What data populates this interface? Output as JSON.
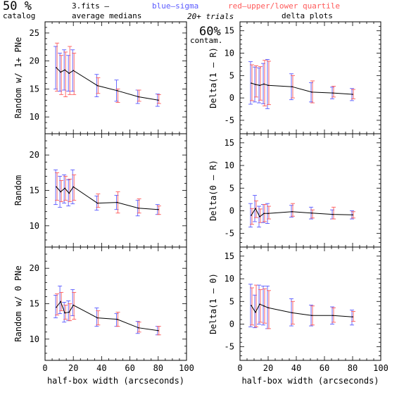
{
  "header": {
    "percent": "50 %",
    "catalog": "catalog",
    "fits_label": "3.fits  —",
    "average_medians": "average medians",
    "blue_sigma": "blue—sigma",
    "red_quartile": "red—upper/lower quartile",
    "trials": "20+ trials",
    "delta_plots": "delta plots",
    "contam_pct": "60%",
    "contam": "contam."
  },
  "colors": {
    "sigma": "#5a5aff",
    "quartile": "#ff5a5a",
    "line": "#000000"
  },
  "chart_data": [
    {
      "type": "line",
      "panel": "left-top",
      "xlabel": "",
      "ylabel": "Random w/ 1+ PNe",
      "xlim": [
        0,
        100
      ],
      "ylim": [
        7,
        27
      ],
      "xticks": [
        "0",
        "20",
        "40",
        "60",
        "80",
        "100"
      ],
      "yticks": [
        10,
        15,
        20,
        25
      ],
      "x": [
        8,
        11,
        14,
        17,
        20,
        37,
        51,
        66,
        80
      ],
      "y": [
        18.8,
        18.0,
        18.4,
        17.8,
        18.3,
        15.6,
        14.7,
        13.6,
        13.0
      ],
      "sigma_low": [
        15.0,
        14.6,
        14.8,
        14.6,
        14.6,
        13.6,
        12.8,
        12.4,
        11.9
      ],
      "sigma_high": [
        22.6,
        21.4,
        22.0,
        21.0,
        22.0,
        17.6,
        16.6,
        14.8,
        14.1
      ],
      "quart_low": [
        14.6,
        14.0,
        13.6,
        14.0,
        14.0,
        14.2,
        12.6,
        12.8,
        12.4
      ],
      "quart_high": [
        23.2,
        21.0,
        21.6,
        22.6,
        21.4,
        17.0,
        15.0,
        14.8,
        14.0
      ]
    },
    {
      "type": "line",
      "panel": "left-middle",
      "xlabel": "",
      "ylabel": "Random",
      "xlim": [
        0,
        100
      ],
      "ylim": [
        7,
        23
      ],
      "xticks": [
        "0",
        "20",
        "40",
        "60",
        "80",
        "100"
      ],
      "yticks": [
        10,
        15,
        20
      ],
      "x": [
        8,
        11,
        14,
        17,
        20,
        37,
        51,
        66,
        80
      ],
      "y": [
        15.5,
        14.8,
        15.3,
        14.6,
        15.5,
        13.2,
        13.3,
        12.5,
        12.3
      ],
      "sigma_low": [
        13.0,
        12.6,
        13.2,
        12.8,
        13.1,
        12.2,
        12.3,
        11.4,
        11.6
      ],
      "sigma_high": [
        17.9,
        17.0,
        17.2,
        16.5,
        17.9,
        14.2,
        14.3,
        13.6,
        13.0
      ],
      "quart_low": [
        13.6,
        13.4,
        13.6,
        13.4,
        13.6,
        12.6,
        11.8,
        11.8,
        11.6
      ],
      "quart_high": [
        17.5,
        16.4,
        17.0,
        16.6,
        17.2,
        14.5,
        14.8,
        13.8,
        12.8
      ]
    },
    {
      "type": "line",
      "panel": "left-bottom",
      "xlabel": "half-box width (arcseconds)",
      "ylabel": "Random w/ 0 PNe",
      "xlim": [
        0,
        100
      ],
      "ylim": [
        7,
        23
      ],
      "xticks": [
        "0",
        "20",
        "40",
        "60",
        "80",
        "100"
      ],
      "yticks": [
        10,
        15,
        20
      ],
      "x": [
        8,
        11,
        14,
        17,
        20,
        37,
        51,
        66,
        80
      ],
      "y": [
        14.5,
        15.3,
        13.7,
        13.8,
        14.8,
        13.0,
        12.8,
        11.6,
        11.2
      ],
      "sigma_low": [
        13.0,
        13.6,
        12.4,
        12.6,
        13.3,
        11.8,
        11.8,
        10.8,
        10.6
      ],
      "sigma_high": [
        16.2,
        17.5,
        15.2,
        15.4,
        17.0,
        14.4,
        13.6,
        12.5,
        11.8
      ],
      "quart_low": [
        13.4,
        14.0,
        12.8,
        12.6,
        12.8,
        12.0,
        11.8,
        11.0,
        10.6
      ],
      "quart_high": [
        16.4,
        16.6,
        14.8,
        15.0,
        16.6,
        14.0,
        13.8,
        12.4,
        11.8
      ]
    },
    {
      "type": "line",
      "panel": "right-top",
      "xlabel": "",
      "ylabel": "Delta(1 — R)",
      "xlim": [
        0,
        100
      ],
      "ylim": [
        -8,
        17
      ],
      "xticks": [
        "0",
        "20",
        "40",
        "60",
        "80",
        "100"
      ],
      "yticks": [
        -5,
        0,
        5,
        10,
        15
      ],
      "x": [
        8,
        11,
        14,
        17,
        20,
        37,
        51,
        66,
        80
      ],
      "y": [
        3.3,
        3.0,
        2.8,
        3.1,
        2.8,
        2.5,
        1.3,
        1.1,
        0.8
      ],
      "sigma_low": [
        -1.4,
        -0.9,
        -1.1,
        -1.3,
        -2.4,
        -0.4,
        -0.9,
        -0.2,
        -0.6
      ],
      "sigma_high": [
        8.1,
        6.9,
        6.7,
        7.7,
        8.6,
        5.4,
        3.4,
        2.4,
        2.1
      ],
      "quart_low": [
        -0.6,
        0.2,
        -0.5,
        -1.8,
        -1.5,
        0.0,
        -1.1,
        0.2,
        -0.2
      ],
      "quart_high": [
        7.4,
        7.2,
        7.0,
        8.4,
        8.2,
        5.0,
        3.8,
        2.6,
        1.9
      ]
    },
    {
      "type": "line",
      "panel": "right-middle",
      "xlabel": "",
      "ylabel": "Delta(0 — R)",
      "xlim": [
        0,
        100
      ],
      "ylim": [
        -8,
        17
      ],
      "xticks": [
        "0",
        "20",
        "40",
        "60",
        "80",
        "100"
      ],
      "yticks": [
        -5,
        0,
        5,
        10,
        15
      ],
      "x": [
        8,
        11,
        14,
        17,
        20,
        37,
        51,
        66,
        80
      ],
      "y": [
        -1.0,
        0.5,
        -1.3,
        -0.6,
        -0.6,
        -0.2,
        -0.5,
        -0.8,
        -0.9
      ],
      "sigma_low": [
        -3.6,
        -2.4,
        -3.6,
        -2.6,
        -2.8,
        -1.4,
        -1.8,
        -1.8,
        -1.8
      ],
      "sigma_high": [
        1.6,
        3.4,
        1.0,
        1.4,
        1.6,
        1.2,
        0.8,
        0.2,
        0.0
      ],
      "quart_low": [
        -3.0,
        -1.5,
        -2.6,
        -2.4,
        -1.8,
        -1.2,
        -1.6,
        -1.8,
        -1.6
      ],
      "quart_high": [
        0.5,
        2.2,
        0.4,
        1.4,
        1.0,
        1.6,
        0.2,
        0.8,
        -0.2
      ]
    },
    {
      "type": "line",
      "panel": "right-bottom",
      "xlabel": "half-box width (arcseconds)",
      "ylabel": "Delta(1 — 0)",
      "xlim": [
        0,
        100
      ],
      "ylim": [
        -8,
        17
      ],
      "xticks": [
        "0",
        "20",
        "40",
        "60",
        "80",
        "100"
      ],
      "yticks": [
        -5,
        0,
        5,
        10,
        15
      ],
      "x": [
        8,
        11,
        14,
        17,
        20,
        37,
        51,
        66,
        80
      ],
      "y": [
        4.1,
        2.6,
        4.4,
        4.0,
        3.6,
        2.5,
        1.9,
        1.9,
        1.6
      ],
      "sigma_low": [
        -0.6,
        -0.8,
        0.0,
        -0.2,
        -1.0,
        -0.4,
        -0.4,
        0.0,
        -0.2
      ],
      "sigma_high": [
        8.8,
        6.4,
        8.6,
        8.4,
        8.4,
        5.6,
        4.2,
        3.8,
        3.1
      ],
      "quart_low": [
        -0.2,
        -0.6,
        0.4,
        0.2,
        -1.0,
        0.0,
        -0.2,
        0.4,
        0.6
      ],
      "quart_high": [
        8.0,
        8.6,
        7.6,
        7.8,
        7.4,
        5.0,
        4.0,
        3.6,
        2.8
      ]
    }
  ]
}
